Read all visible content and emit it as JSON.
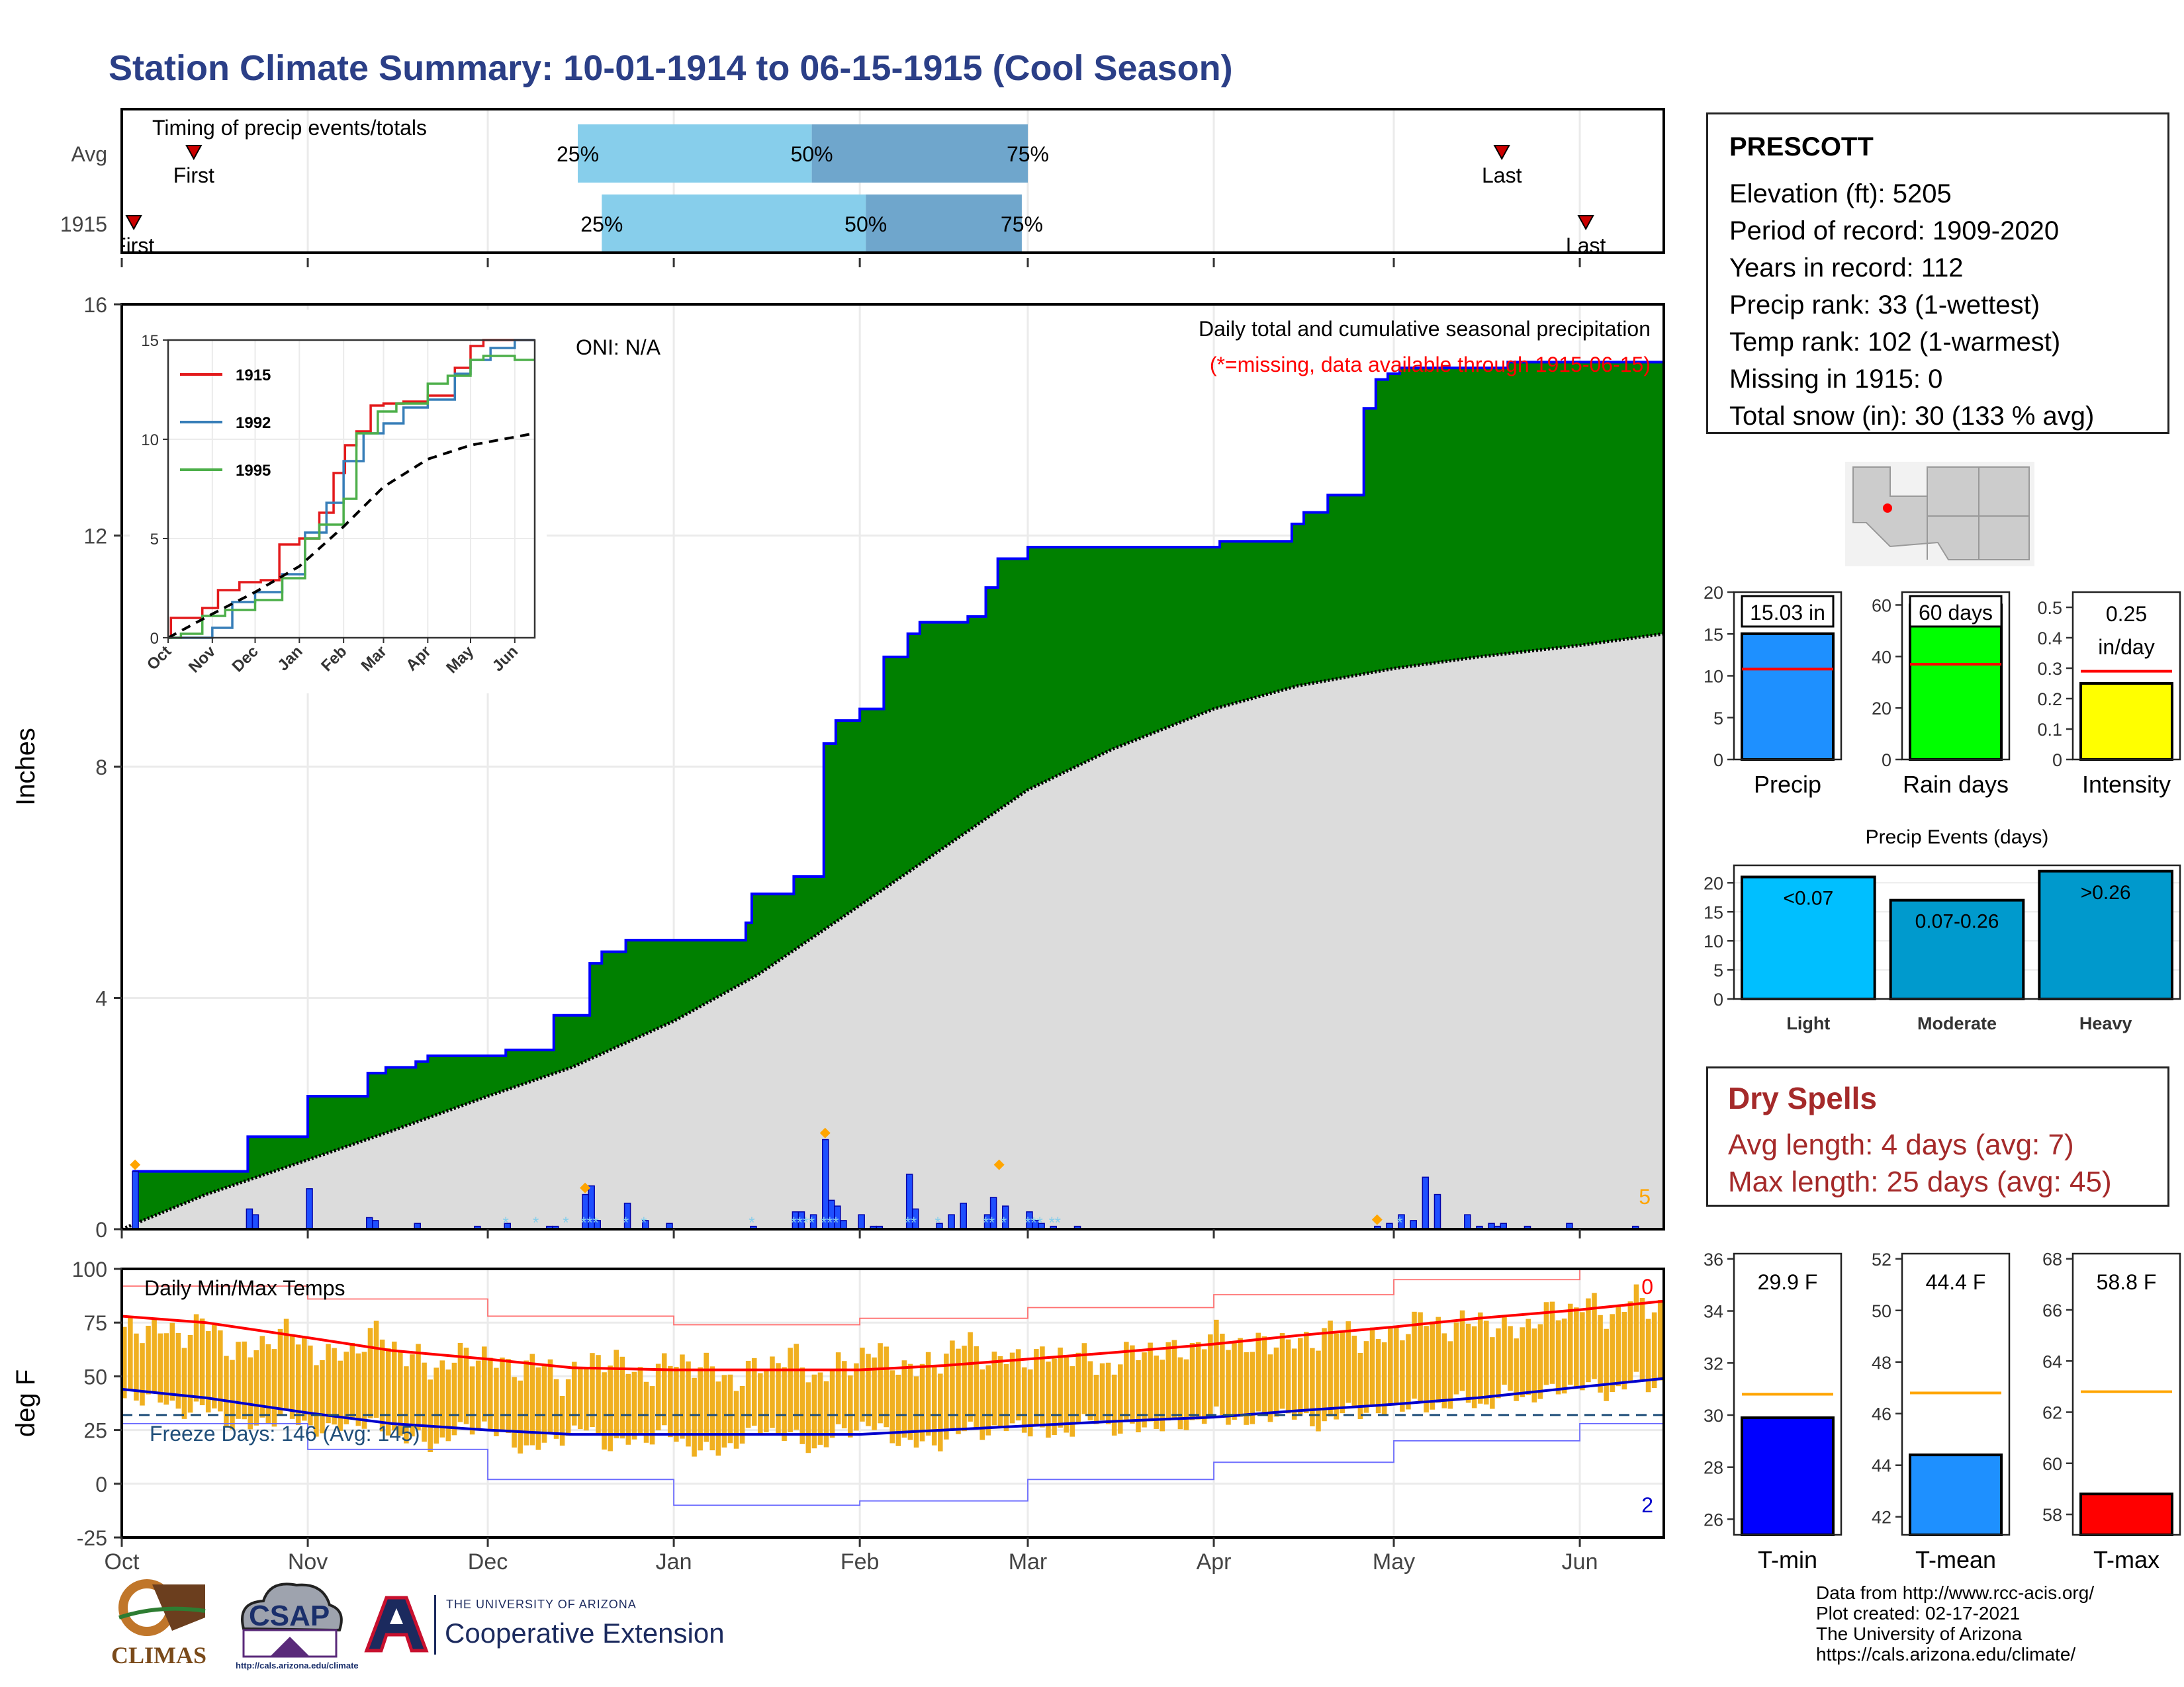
{
  "page": {
    "title": "Station Climate Summary: 10-01-1914 to 06-15-1915 (Cool Season)",
    "footer_lines": [
      "Data from http://www.rcc-acis.org/",
      "Plot created: 02-17-2021",
      "The University of Arizona",
      "https://cals.arizona.edu/climate/"
    ],
    "logos": {
      "climas": "CLIMAS",
      "csap": "CSAP",
      "csap_url": "http://cals.arizona.edu/climate",
      "ua_line1": "THE UNIVERSITY OF ARIZONA",
      "ua_line2": "Cooperative Extension"
    }
  },
  "station": {
    "name": "PRESCOTT",
    "lines": [
      "Elevation (ft): 5205",
      "Period of record: 1909-2020",
      "Years in record: 112",
      "Precip rank: 33 (1-wettest)",
      "Temp rank: 102 (1-warmest)",
      "Missing in 1915: 0",
      "Total snow (in): 30 (133 % avg)"
    ]
  },
  "dry_spells": {
    "title": "Dry Spells",
    "lines": [
      "Avg length: 4 days (avg: 7)",
      "Max length: 25 days (avg: 45)"
    ]
  },
  "colors": {
    "title": "#2b3f87",
    "obs_fill": "#008000",
    "obs_line": "#0000ff",
    "avg_fill": "#dcdcdc",
    "bar_fill": "#1f4fff",
    "temp_bar": "#f0b020",
    "max_line": "#ff0000",
    "min_line": "#0000cc",
    "light_blue": "#87ceeb",
    "mid_blue": "#6fa6cc",
    "dry_red": "#a52a2a",
    "orange": "#ffa500"
  },
  "chart_data": [
    {
      "type": "bar",
      "title": "Timing of precip events/totals",
      "categories": [
        "Avg",
        "1915"
      ],
      "quantile_labels": [
        "25%",
        "50%",
        "75%"
      ],
      "series": [
        {
          "name": "Avg",
          "q25": "1914-12-16",
          "q50": "1915-01-24",
          "q75": "1915-03-01",
          "first": "1914-10-13",
          "last": "1915-05-19",
          "first_label": "First",
          "last_label": "Last"
        },
        {
          "name": "1915",
          "q25": "1914-12-20",
          "q50": "1915-02-02",
          "q75": "1915-02-28",
          "first": "1914-10-03",
          "last": "1915-06-02",
          "first_label": "First",
          "last_label": "Last"
        }
      ]
    },
    {
      "type": "area",
      "title": "Daily total and cumulative seasonal precipitation",
      "subtitle": "(*=missing, data available through 1915-06-15)",
      "annotation": "ONI: N/A",
      "ylabel": "Inches",
      "ylim": [
        0,
        16
      ],
      "yticks": [
        0,
        4,
        8,
        12,
        16
      ],
      "x_ticks": [
        "Oct",
        "Nov",
        "Dec",
        "Jan",
        "Feb",
        "Mar",
        "Apr",
        "May",
        "Jun"
      ],
      "corner_number": "5",
      "cumulative_observed": {
        "x": [
          "1914-10-01",
          "1914-10-03",
          "1914-10-20",
          "1914-10-22",
          "1914-11-01",
          "1914-11-11",
          "1914-11-14",
          "1914-11-19",
          "1914-11-21",
          "1914-12-01",
          "1914-12-04",
          "1914-12-12",
          "1914-12-18",
          "1914-12-20",
          "1914-12-24",
          "1914-12-31",
          "1915-01-13",
          "1915-01-14",
          "1915-01-21",
          "1915-01-26",
          "1915-01-28",
          "1915-02-01",
          "1915-02-05",
          "1915-02-09",
          "1915-02-11",
          "1915-02-19",
          "1915-02-22",
          "1915-02-24",
          "1915-03-01",
          "1915-03-02",
          "1915-03-05",
          "1915-04-02",
          "1915-04-14",
          "1915-04-16",
          "1915-04-20",
          "1915-04-26",
          "1915-04-28",
          "1915-04-30",
          "1915-05-02",
          "1915-05-04",
          "1915-05-10",
          "1915-05-20",
          "1915-06-01",
          "1915-06-15"
        ],
        "y": [
          0.0,
          1.0,
          1.0,
          1.6,
          2.3,
          2.7,
          2.8,
          2.9,
          3.0,
          3.0,
          3.1,
          3.7,
          4.6,
          4.8,
          5.0,
          5.0,
          5.3,
          5.8,
          6.1,
          8.4,
          8.8,
          9.0,
          9.9,
          10.3,
          10.5,
          10.6,
          11.1,
          11.6,
          11.8,
          11.8,
          11.8,
          11.9,
          12.2,
          12.4,
          12.7,
          14.2,
          14.7,
          14.8,
          14.9,
          14.9,
          14.9,
          15.0,
          15.0,
          15.03
        ]
      },
      "cumulative_average": {
        "x": [
          "1914-10-01",
          "1914-10-15",
          "1914-11-01",
          "1914-11-15",
          "1914-12-01",
          "1914-12-15",
          "1915-01-01",
          "1915-01-15",
          "1915-02-01",
          "1915-02-15",
          "1915-03-01",
          "1915-03-15",
          "1915-04-01",
          "1915-04-15",
          "1915-05-01",
          "1915-05-15",
          "1915-06-01",
          "1915-06-15"
        ],
        "y": [
          0.0,
          0.6,
          1.2,
          1.7,
          2.3,
          2.8,
          3.6,
          4.4,
          5.6,
          6.6,
          7.6,
          8.3,
          9.0,
          9.4,
          9.7,
          9.9,
          10.1,
          10.3
        ]
      },
      "daily": {
        "x": [
          "1914-10-03",
          "1914-10-22",
          "1914-10-23",
          "1914-11-01",
          "1914-11-11",
          "1914-11-12",
          "1914-11-19",
          "1914-11-29",
          "1914-12-04",
          "1914-12-11",
          "1914-12-12",
          "1914-12-17",
          "1914-12-18",
          "1914-12-19",
          "1914-12-24",
          "1914-12-27",
          "1914-12-31",
          "1915-01-14",
          "1915-01-21",
          "1915-01-22",
          "1915-01-24",
          "1915-01-26",
          "1915-01-27",
          "1915-01-28",
          "1915-01-29",
          "1915-02-01",
          "1915-02-03",
          "1915-02-04",
          "1915-02-09",
          "1915-02-10",
          "1915-02-14",
          "1915-02-16",
          "1915-02-18",
          "1915-02-22",
          "1915-02-23",
          "1915-02-25",
          "1915-03-01",
          "1915-03-02",
          "1915-03-03",
          "1915-03-05",
          "1915-03-09",
          "1915-04-28",
          "1915-04-30",
          "1915-05-02",
          "1915-05-04",
          "1915-05-06",
          "1915-05-08",
          "1915-05-13",
          "1915-05-15",
          "1915-05-17",
          "1915-05-18",
          "1915-05-19",
          "1915-05-23",
          "1915-05-30",
          "1915-06-10"
        ],
        "y": [
          1.0,
          0.35,
          0.25,
          0.7,
          0.2,
          0.15,
          0.1,
          0.05,
          0.1,
          0.05,
          0.05,
          0.6,
          0.75,
          0.15,
          0.45,
          0.15,
          0.1,
          0.05,
          0.3,
          0.3,
          0.25,
          1.55,
          0.5,
          0.4,
          0.15,
          0.25,
          0.05,
          0.05,
          0.95,
          0.35,
          0.1,
          0.25,
          0.45,
          0.25,
          0.55,
          0.4,
          0.3,
          0.15,
          0.1,
          0.05,
          0.05,
          0.05,
          0.1,
          0.25,
          0.15,
          0.9,
          0.6,
          0.25,
          0.05,
          0.1,
          0.05,
          0.1,
          0.05,
          0.1,
          0.05
        ]
      },
      "snow_marker_dates": [
        "1914-12-04",
        "1914-12-09",
        "1914-12-14",
        "1914-12-17",
        "1914-12-18",
        "1914-12-19",
        "1914-12-24",
        "1914-12-27",
        "1915-01-14",
        "1915-01-21",
        "1915-01-22",
        "1915-01-23",
        "1915-01-24",
        "1915-01-26",
        "1915-01-27",
        "1915-01-28",
        "1915-02-09",
        "1915-02-10",
        "1915-02-14",
        "1915-02-22",
        "1915-02-23",
        "1915-02-25",
        "1915-03-01",
        "1915-03-02",
        "1915-03-03",
        "1915-03-05",
        "1915-03-06",
        "1915-04-28",
        "1915-05-02"
      ],
      "big_event_dates": [
        "1914-10-03",
        "1914-12-17",
        "1915-01-26",
        "1915-02-24",
        "1915-04-28"
      ],
      "inset": {
        "type": "line",
        "xlim_labels": [
          "Oct",
          "Nov",
          "Dec",
          "Jan",
          "Feb",
          "Mar",
          "Apr",
          "May",
          "Jun"
        ],
        "ylim": [
          0,
          15
        ],
        "yticks": [
          0,
          5,
          10,
          15
        ],
        "series": [
          {
            "name": "1915",
            "color": "#e31a1c",
            "x": [
              "10-01",
              "10-03",
              "10-15",
              "10-25",
              "11-05",
              "11-20",
              "12-05",
              "12-18",
              "01-01",
              "01-15",
              "01-25",
              "02-02",
              "02-10",
              "02-20",
              "03-01",
              "03-15",
              "04-01",
              "04-20",
              "05-01",
              "05-10",
              "06-01",
              "06-15"
            ],
            "y": [
              0,
              1,
              1,
              1.5,
              2.4,
              2.8,
              2.9,
              4.7,
              5.0,
              6.3,
              8.3,
              9.7,
              10.4,
              11.7,
              11.8,
              11.9,
              12.2,
              13.6,
              14.7,
              15.0,
              15.0,
              15.0
            ]
          },
          {
            "name": "1992",
            "color": "#377eb8",
            "x": [
              "10-01",
              "10-20",
              "11-01",
              "11-15",
              "12-01",
              "12-20",
              "01-05",
              "01-20",
              "02-01",
              "02-15",
              "03-01",
              "03-15",
              "04-01",
              "04-20",
              "05-01",
              "05-15",
              "06-01",
              "06-15"
            ],
            "y": [
              0,
              0,
              0.5,
              1.8,
              2.3,
              3.2,
              5.3,
              6.8,
              8.9,
              10.3,
              10.8,
              11.6,
              12.0,
              13.3,
              14.0,
              14.6,
              15.0,
              15.0
            ]
          },
          {
            "name": "1995",
            "color": "#4daf4a",
            "x": [
              "10-01",
              "10-10",
              "10-25",
              "11-10",
              "12-01",
              "12-20",
              "01-05",
              "01-15",
              "02-01",
              "02-10",
              "02-25",
              "03-10",
              "04-01",
              "04-15",
              "05-01",
              "05-10",
              "06-01",
              "06-15"
            ],
            "y": [
              0,
              0.2,
              1.1,
              1.4,
              1.9,
              3.0,
              5.0,
              5.7,
              7.0,
              10.3,
              11.4,
              11.8,
              12.8,
              13.2,
              14.0,
              14.2,
              14.0,
              14.0
            ]
          },
          {
            "name": "",
            "color": "#000000",
            "dashed": true,
            "x": [
              "10-01",
              "11-01",
              "12-01",
              "01-01",
              "02-01",
              "03-01",
              "04-01",
              "05-01",
              "06-15"
            ],
            "y": [
              0,
              1.2,
              2.3,
              3.6,
              5.6,
              7.6,
              9.0,
              9.7,
              10.3
            ]
          }
        ]
      }
    },
    {
      "type": "bar",
      "title": "Daily Min/Max Temps",
      "ylabel": "deg F",
      "ylim": [
        -25,
        100
      ],
      "yticks": [
        -25,
        0,
        25,
        50,
        75,
        100
      ],
      "x_ticks": [
        "Oct",
        "Nov",
        "Dec",
        "Jan",
        "Feb",
        "Mar",
        "Apr",
        "May",
        "Jun"
      ],
      "annotation": "Freeze Days: 146 (Avg: 145)",
      "freeze_line": 32,
      "corner_top": "0",
      "corner_bottom": "2",
      "avg_max": {
        "x": [
          "10-01",
          "10-15",
          "11-01",
          "11-15",
          "12-01",
          "12-15",
          "01-01",
          "01-15",
          "02-01",
          "02-15",
          "03-01",
          "03-15",
          "04-01",
          "04-15",
          "05-01",
          "05-15",
          "06-01",
          "06-15"
        ],
        "y": [
          78,
          75,
          68,
          62,
          58,
          54,
          53,
          53,
          53,
          55,
          58,
          61,
          65,
          69,
          73,
          77,
          81,
          85
        ]
      },
      "avg_min": {
        "x": [
          "10-01",
          "10-15",
          "11-01",
          "11-15",
          "12-01",
          "12-15",
          "01-01",
          "01-15",
          "02-01",
          "02-15",
          "03-01",
          "03-15",
          "04-01",
          "04-15",
          "05-01",
          "05-15",
          "06-01",
          "06-15"
        ],
        "y": [
          44,
          40,
          33,
          28,
          25,
          23,
          23,
          23,
          23,
          25,
          27,
          29,
          31,
          34,
          37,
          40,
          45,
          49
        ]
      },
      "record_max": {
        "x": [
          "10-01",
          "11-01",
          "12-01",
          "01-01",
          "02-01",
          "03-01",
          "04-01",
          "05-01",
          "06-01",
          "06-15"
        ],
        "y": [
          92,
          86,
          78,
          74,
          77,
          82,
          88,
          95,
          100,
          100
        ]
      },
      "record_min": {
        "x": [
          "10-01",
          "11-01",
          "12-01",
          "01-01",
          "02-01",
          "03-01",
          "04-01",
          "05-01",
          "06-01",
          "06-15"
        ],
        "y": [
          28,
          16,
          2,
          -10,
          -8,
          2,
          10,
          20,
          28,
          32
        ]
      },
      "daily_max_1915": [
        70,
        74,
        68,
        76,
        65,
        60,
        72,
        66,
        58,
        64,
        70,
        60,
        54,
        58,
        62,
        52,
        58,
        48,
        55,
        60,
        50,
        54,
        58,
        52,
        48,
        56,
        60,
        50,
        54,
        62,
        58,
        52,
        60,
        66,
        56,
        60,
        58,
        62,
        54,
        58,
        64,
        60,
        66,
        70,
        62,
        68,
        64,
        72,
        70,
        66,
        74,
        76,
        72,
        78,
        70,
        76,
        80,
        84,
        78,
        86,
        82
      ],
      "daily_min_1915": [
        38,
        42,
        34,
        36,
        30,
        26,
        32,
        28,
        24,
        30,
        26,
        22,
        18,
        24,
        28,
        20,
        16,
        22,
        26,
        18,
        20,
        24,
        18,
        14,
        20,
        26,
        22,
        16,
        24,
        28,
        22,
        18,
        20,
        26,
        24,
        28,
        22,
        26,
        30,
        24,
        28,
        26,
        30,
        32,
        28,
        34,
        30,
        28,
        36,
        32,
        38,
        34,
        40,
        36,
        42,
        40,
        44,
        46,
        42,
        48,
        46
      ]
    },
    {
      "type": "bar",
      "title": "",
      "categories": [
        "Precip",
        "Rain days",
        "Intensity"
      ],
      "panels": [
        {
          "category": "Precip",
          "value": 15.03,
          "label": "15.03 in",
          "avg": 10.8,
          "ylim": [
            0,
            20
          ],
          "yticks": [
            0,
            5,
            10,
            15,
            20
          ],
          "color": "#1e90ff"
        },
        {
          "category": "Rain days",
          "value": 60,
          "label": "60 days",
          "avg": 37,
          "ylim": [
            0,
            65
          ],
          "yticks": [
            0,
            20,
            40,
            60
          ],
          "color": "#00ff00"
        },
        {
          "category": "Intensity",
          "value": 0.25,
          "label": "0.25 in/day",
          "label_lines": [
            "0.25",
            "in/day"
          ],
          "avg": 0.29,
          "ylim": [
            0,
            0.55
          ],
          "yticks": [
            0.0,
            0.1,
            0.2,
            0.3,
            0.4,
            0.5
          ],
          "color": "#ffff00"
        }
      ]
    },
    {
      "type": "bar",
      "title": "Precip Events (days)",
      "categories": [
        "Light",
        "Moderate",
        "Heavy"
      ],
      "labels": [
        "<0.07",
        "0.07-0.26",
        ">0.26"
      ],
      "values": [
        21,
        17,
        22
      ],
      "ylim": [
        0,
        23
      ],
      "yticks": [
        0,
        5,
        10,
        15,
        20
      ],
      "colors": [
        "#00bfff",
        "#009acd",
        "#0099cc"
      ]
    },
    {
      "type": "bar",
      "title": "",
      "categories": [
        "T-min",
        "T-mean",
        "T-max"
      ],
      "panels": [
        {
          "category": "T-min",
          "value": 29.9,
          "label": "29.9 F",
          "avg": 30.8,
          "ylim": [
            25.4,
            36.2
          ],
          "yticks": [
            26,
            28,
            30,
            32,
            34,
            36
          ],
          "color": "#0000ff"
        },
        {
          "category": "T-mean",
          "value": 44.4,
          "label": "44.4 F",
          "avg": 46.8,
          "ylim": [
            41.3,
            52.2
          ],
          "yticks": [
            42,
            44,
            46,
            48,
            50,
            52
          ],
          "color": "#1e90ff"
        },
        {
          "category": "T-max",
          "value": 58.8,
          "label": "58.8 F",
          "avg": 62.8,
          "ylim": [
            57.2,
            68.2
          ],
          "yticks": [
            58,
            60,
            62,
            64,
            66,
            68
          ],
          "color": "#ff0000"
        }
      ]
    }
  ]
}
